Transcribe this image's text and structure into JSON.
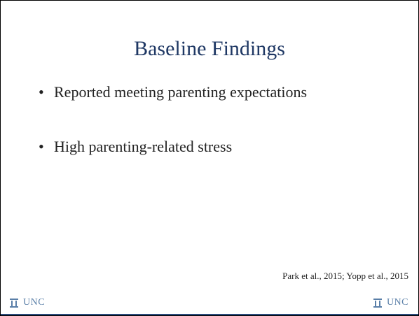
{
  "slide": {
    "title": "Baseline Findings",
    "bullets": [
      "Reported meeting parenting expectations",
      "High parenting-related stress"
    ],
    "citation": "Park et al., 2015; Yopp et al., 2015",
    "footer": {
      "left_logo": "UNC",
      "right_logo": "UNC"
    }
  }
}
